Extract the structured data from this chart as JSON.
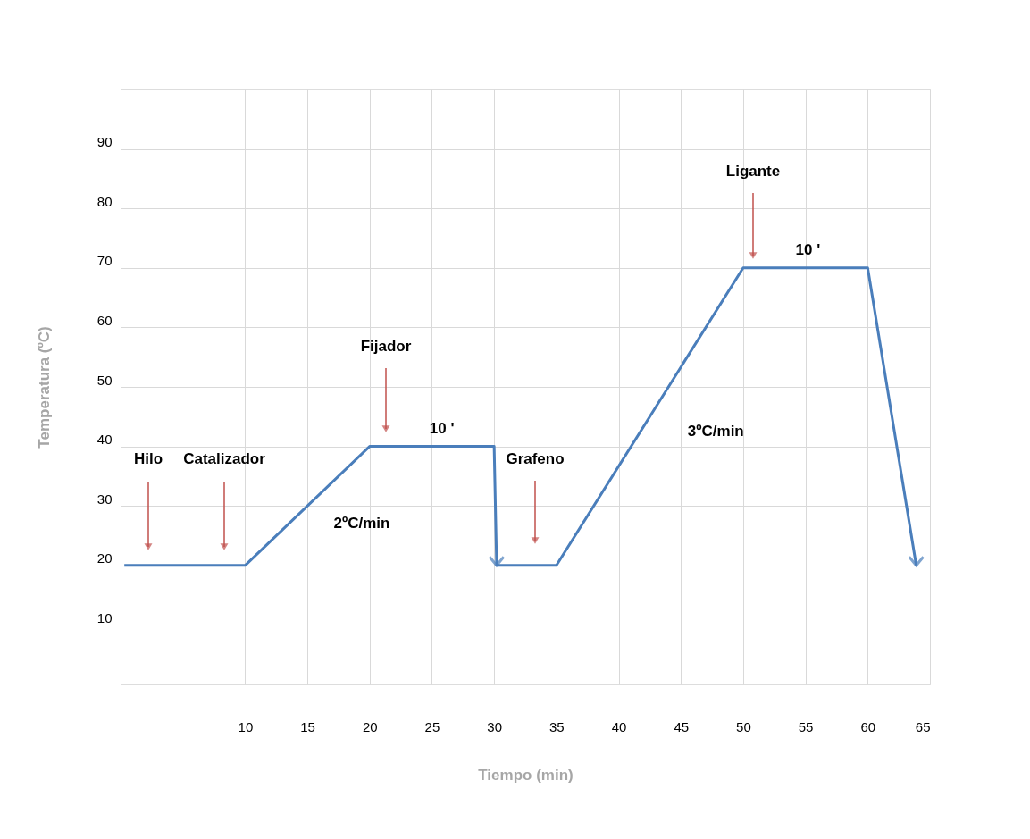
{
  "chart_data": {
    "type": "line",
    "xlabel": "Tiempo (min)",
    "ylabel": "Temperatura (ºC)",
    "x": [
      0.3,
      10,
      20,
      30,
      30.2,
      35,
      50,
      60,
      63.9
    ],
    "series": [
      {
        "color": "#4a7ebb",
        "values": [
          20,
          20,
          40,
          40,
          20,
          20,
          70,
          70,
          20
        ]
      }
    ],
    "xlim": [
      0,
      65
    ],
    "xticks": [
      10,
      15,
      20,
      25,
      30,
      35,
      40,
      45,
      50,
      55,
      60,
      65
    ],
    "ylim": [
      0,
      100
    ],
    "yticks": [
      10,
      20,
      30,
      40,
      50,
      60,
      70,
      80,
      90
    ],
    "grid": true,
    "marker": "none",
    "line_style": "solid",
    "annotations": [
      "Hilo",
      "Catalizador",
      "Fijador",
      "Grafeno",
      "Ligante",
      {
        "text": "10 '",
        "x": 25.8,
        "y": 40
      },
      {
        "text": "2ºC/min",
        "x": 16,
        "y": 32
      },
      {
        "text": "3ºC/min",
        "x": 44,
        "y": 50
      },
      {
        "text": "10 '",
        "x": 55.2,
        "y": 70
      }
    ]
  }
}
